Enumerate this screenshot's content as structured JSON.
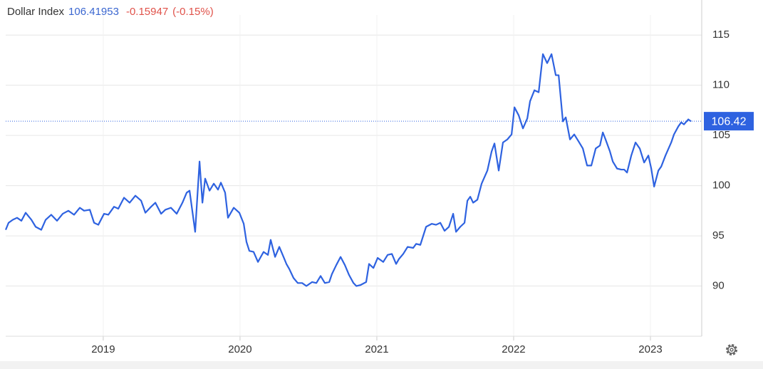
{
  "chart_data": {
    "type": "line",
    "title": "Dollar Index",
    "last": {
      "value": 106.41953,
      "label": "106.42"
    },
    "change": -0.15947,
    "change_pct": {
      "value": -0.15,
      "label": "(-0.15%)"
    },
    "xlim": [
      2018.287,
      2023.375
    ],
    "xticks": [
      2019,
      2020,
      2021,
      2022,
      2023
    ],
    "ylim": [
      85,
      117
    ],
    "yticks": [
      90,
      95,
      100,
      105,
      110,
      115
    ],
    "grid": true,
    "x": [
      2018.287,
      2018.308,
      2018.339,
      2018.37,
      2018.402,
      2018.433,
      2018.475,
      2018.506,
      2018.547,
      2018.579,
      2018.62,
      2018.662,
      2018.704,
      2018.745,
      2018.787,
      2018.829,
      2018.86,
      2018.902,
      2018.933,
      2018.964,
      2019.006,
      2019.037,
      2019.079,
      2019.11,
      2019.152,
      2019.193,
      2019.235,
      2019.277,
      2019.308,
      2019.35,
      2019.381,
      2019.423,
      2019.454,
      2019.495,
      2019.537,
      2019.579,
      2019.61,
      2019.631,
      2019.672,
      2019.704,
      2019.725,
      2019.745,
      2019.777,
      2019.808,
      2019.839,
      2019.86,
      2019.891,
      2019.912,
      2019.954,
      2019.995,
      2020.027,
      2020.047,
      2020.068,
      2020.099,
      2020.131,
      2020.172,
      2020.204,
      2020.224,
      2020.256,
      2020.287,
      2020.318,
      2020.339,
      2020.36,
      2020.391,
      2020.422,
      2020.454,
      2020.485,
      2020.527,
      2020.558,
      2020.589,
      2020.62,
      2020.652,
      2020.672,
      2020.704,
      2020.735,
      2020.766,
      2020.797,
      2020.829,
      2020.85,
      2020.881,
      2020.922,
      2020.943,
      2020.975,
      2021.006,
      2021.047,
      2021.079,
      2021.11,
      2021.141,
      2021.162,
      2021.193,
      2021.225,
      2021.266,
      2021.287,
      2021.318,
      2021.36,
      2021.402,
      2021.433,
      2021.464,
      2021.495,
      2021.527,
      2021.558,
      2021.579,
      2021.61,
      2021.641,
      2021.662,
      2021.683,
      2021.704,
      2021.735,
      2021.766,
      2021.808,
      2021.839,
      2021.86,
      2021.891,
      2021.922,
      2021.954,
      2021.985,
      2022.006,
      2022.037,
      2022.068,
      2022.1,
      2022.12,
      2022.152,
      2022.183,
      2022.214,
      2022.245,
      2022.277,
      2022.308,
      2022.329,
      2022.36,
      2022.381,
      2022.412,
      2022.443,
      2022.475,
      2022.506,
      2022.537,
      2022.568,
      2022.6,
      2022.631,
      2022.652,
      2022.672,
      2022.704,
      2022.725,
      2022.756,
      2022.787,
      2022.808,
      2022.829,
      2022.86,
      2022.891,
      2022.922,
      2022.954,
      2022.985,
      2023.006,
      2023.027,
      2023.058,
      2023.079,
      2023.11,
      2023.152,
      2023.172,
      2023.204,
      2023.225,
      2023.245,
      2023.277,
      2023.297
    ],
    "series": [
      {
        "name": "Dollar Index",
        "color": "#2e62e0",
        "values": [
          95.6,
          96.3,
          96.6,
          96.8,
          96.5,
          97.3,
          96.6,
          95.9,
          95.6,
          96.6,
          97.1,
          96.5,
          97.2,
          97.5,
          97.1,
          97.8,
          97.5,
          97.6,
          96.3,
          96.1,
          97.2,
          97.1,
          97.9,
          97.7,
          98.8,
          98.3,
          99.0,
          98.5,
          97.3,
          97.9,
          98.3,
          97.2,
          97.6,
          97.8,
          97.2,
          98.3,
          99.3,
          99.5,
          95.4,
          102.4,
          98.3,
          100.7,
          99.5,
          100.2,
          99.6,
          100.3,
          99.3,
          96.8,
          97.8,
          97.3,
          96.2,
          94.4,
          93.5,
          93.4,
          92.4,
          93.4,
          93.1,
          94.6,
          92.9,
          93.9,
          92.9,
          92.2,
          91.7,
          90.8,
          90.3,
          90.3,
          90.0,
          90.4,
          90.3,
          91.0,
          90.3,
          90.4,
          91.2,
          92.1,
          92.9,
          92.1,
          91.1,
          90.3,
          90.0,
          90.1,
          90.4,
          92.2,
          91.8,
          92.8,
          92.4,
          93.1,
          93.2,
          92.2,
          92.7,
          93.2,
          93.9,
          93.8,
          94.2,
          94.1,
          95.9,
          96.2,
          96.1,
          96.3,
          95.5,
          95.9,
          97.2,
          95.4,
          95.9,
          96.3,
          98.5,
          98.9,
          98.3,
          98.6,
          100.2,
          101.5,
          103.4,
          104.2,
          101.5,
          104.3,
          104.6,
          105.1,
          107.8,
          107.0,
          105.7,
          106.7,
          108.4,
          109.5,
          109.3,
          113.1,
          112.2,
          113.1,
          111.0,
          111.0,
          106.4,
          106.8,
          104.6,
          105.1,
          104.4,
          103.7,
          102.0,
          102.0,
          103.7,
          104.0,
          105.3,
          104.6,
          103.4,
          102.4,
          101.7,
          101.6,
          101.6,
          101.3,
          103.0,
          104.3,
          103.7,
          102.3,
          103.0,
          101.7,
          99.9,
          101.5,
          101.9,
          103.0,
          104.3,
          105.1,
          105.9,
          106.3,
          106.1,
          106.6,
          106.4
        ]
      }
    ]
  }
}
